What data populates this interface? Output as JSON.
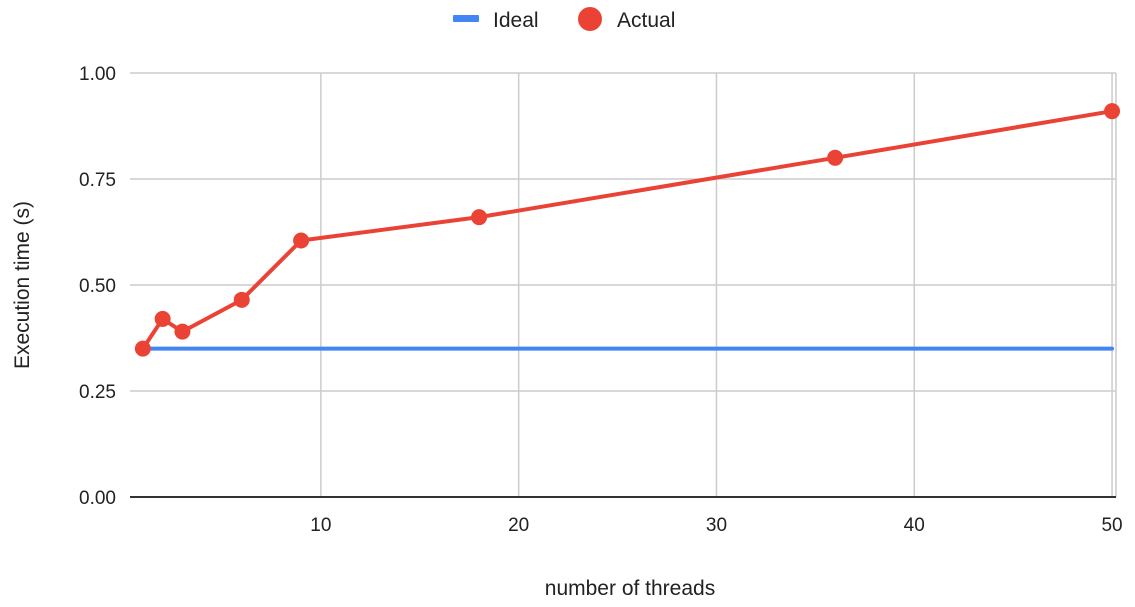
{
  "chart_data": {
    "type": "line",
    "xlabel": "number of threads",
    "ylabel": "Execution time (s)",
    "xlim": [
      0.35,
      50.2
    ],
    "ylim": [
      0,
      1
    ],
    "x_ticks": [
      10,
      20,
      30,
      40,
      50
    ],
    "y_ticks": [
      0,
      0.25,
      0.5,
      0.75,
      1
    ],
    "y_tick_labels": [
      "0.00",
      "0.25",
      "0.50",
      "0.75",
      "1.00"
    ],
    "grid": true,
    "legend_position": "top",
    "series": [
      {
        "name": "Ideal",
        "style": "line",
        "color": "#4285f4",
        "x": [
          1,
          50
        ],
        "y": [
          0.35,
          0.35
        ]
      },
      {
        "name": "Actual",
        "style": "line-with-markers",
        "color": "#ea4335",
        "x": [
          1,
          2,
          3,
          6,
          9,
          18,
          36,
          50
        ],
        "y": [
          0.35,
          0.42,
          0.39,
          0.465,
          0.605,
          0.66,
          0.8,
          0.91
        ]
      }
    ]
  }
}
